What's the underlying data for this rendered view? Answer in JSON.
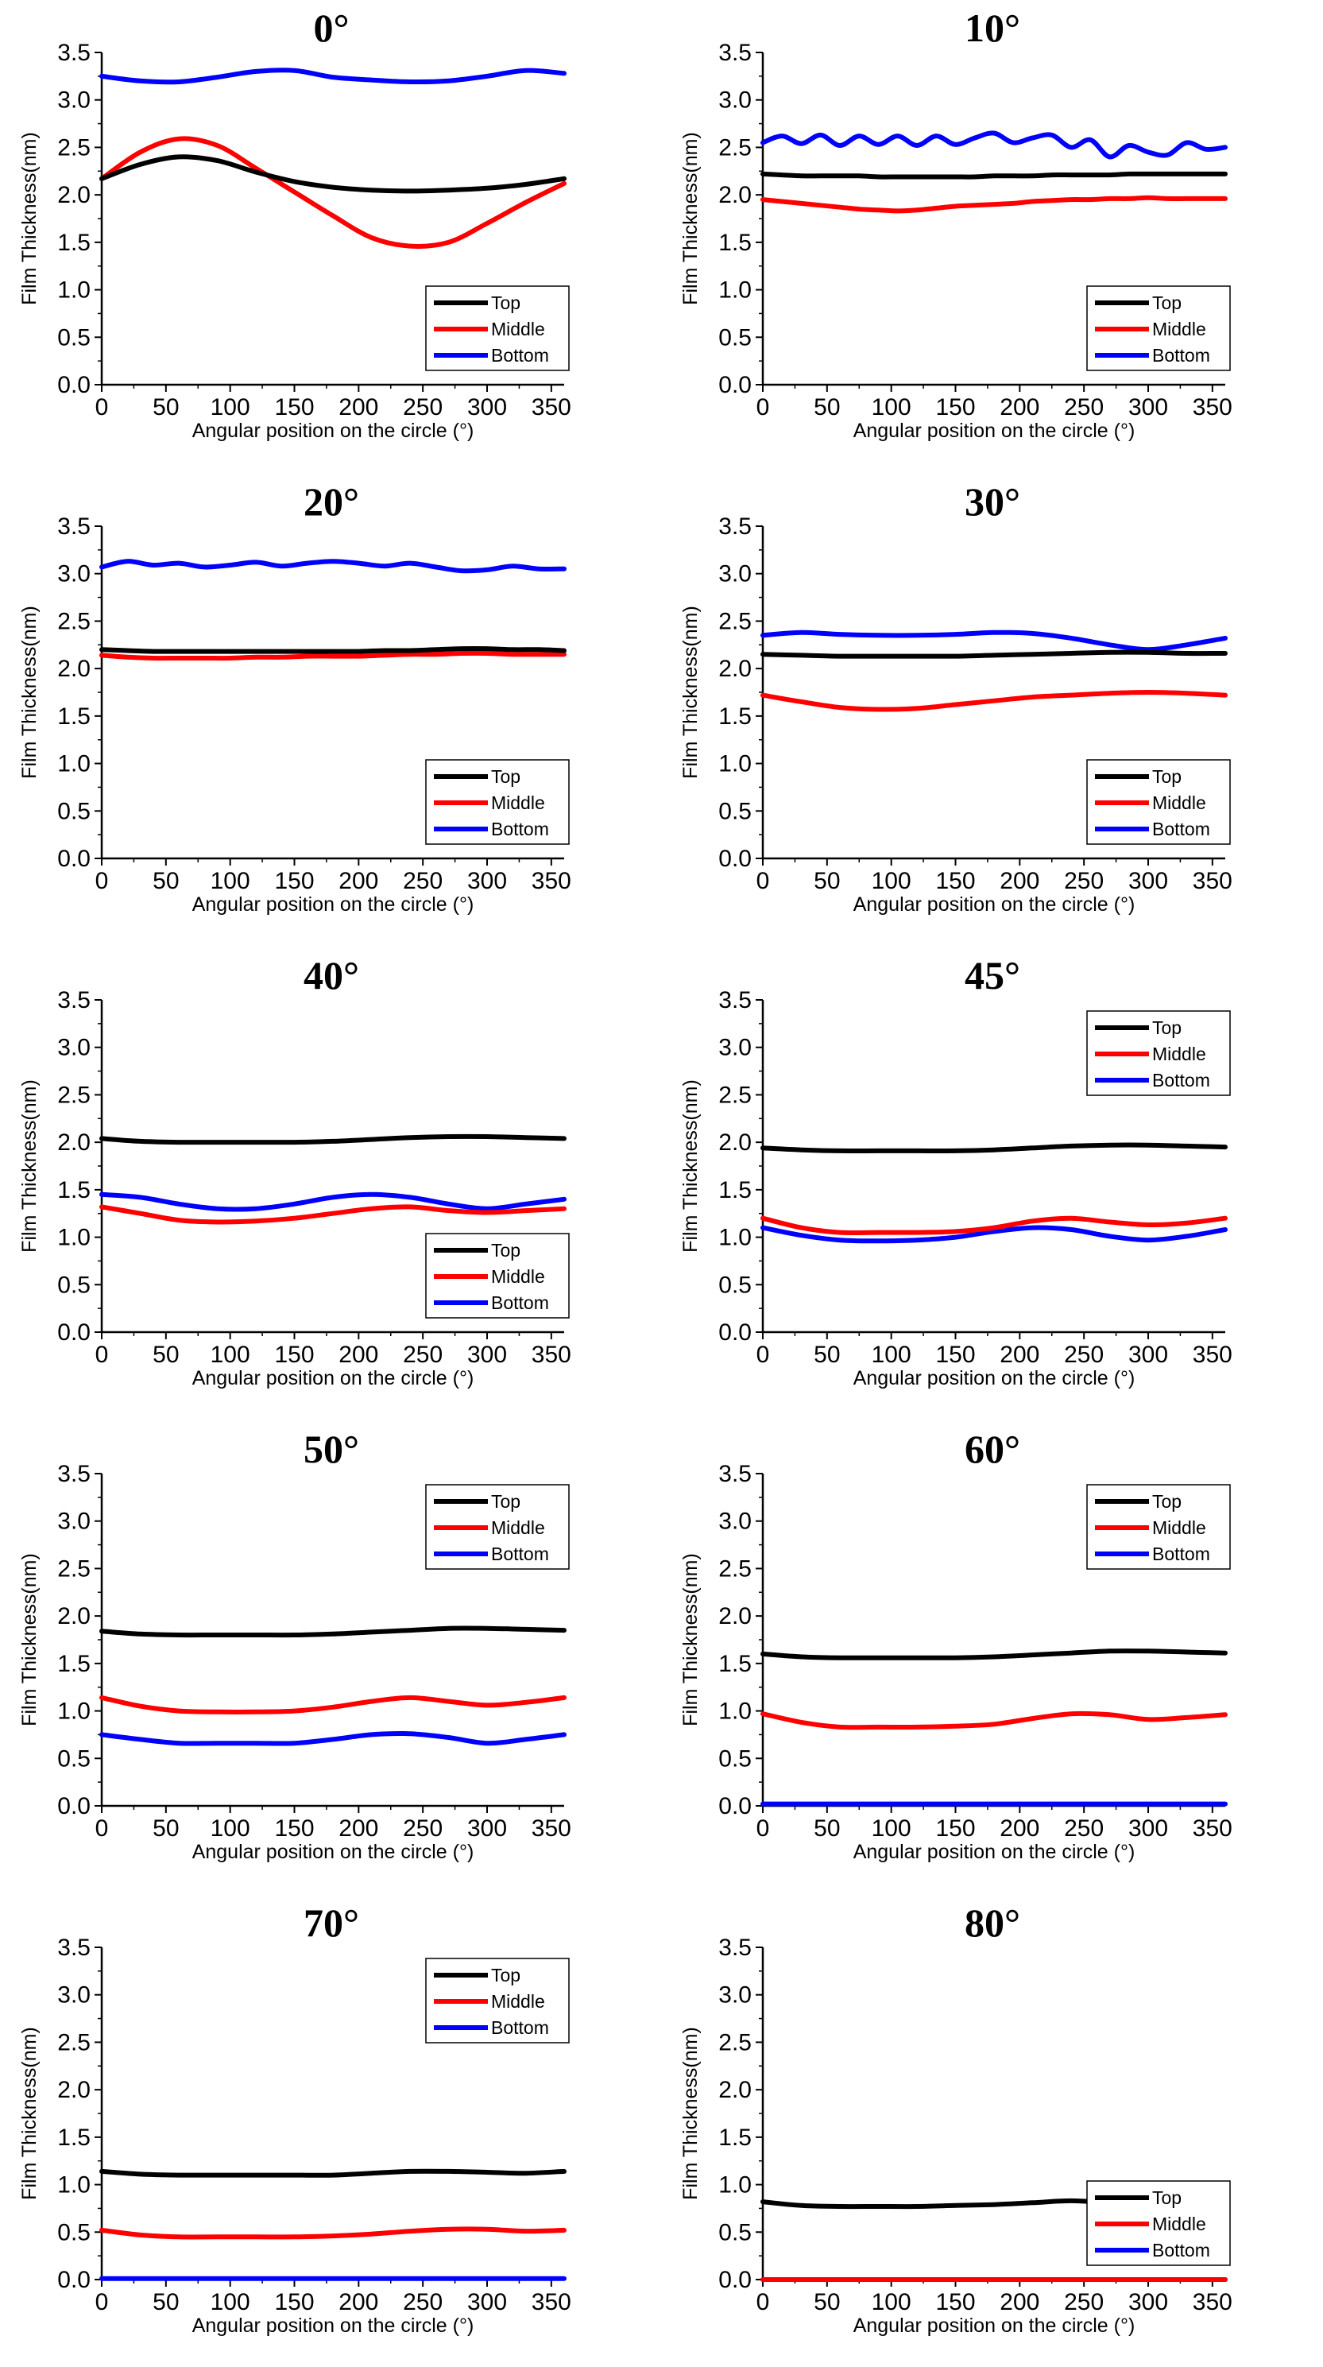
{
  "figure": {
    "series_names": [
      "Top",
      "Middle",
      "Bottom"
    ],
    "colors": {
      "Top": "#000000",
      "Middle": "#ff0000",
      "Bottom": "#0000ff"
    }
  },
  "chart_data": [
    {
      "type": "line",
      "title": "0°",
      "xlabel": "Angular position on the circle (°)",
      "ylabel": "Film Thickness(nm)",
      "xlim": [
        0,
        360
      ],
      "ylim": [
        0,
        3.5
      ],
      "xticks": [
        "0",
        "50",
        "100",
        "150",
        "200",
        "250",
        "300",
        "350"
      ],
      "yticks": [
        "0.0",
        "0.5",
        "1.0",
        "1.5",
        "2.0",
        "2.5",
        "3.0",
        "3.5"
      ],
      "legend": "bottom-right",
      "x": [
        0,
        30,
        60,
        90,
        120,
        150,
        180,
        210,
        240,
        270,
        300,
        330,
        360
      ],
      "series": [
        {
          "name": "Top",
          "values": [
            2.17,
            2.32,
            2.4,
            2.36,
            2.24,
            2.14,
            2.08,
            2.05,
            2.04,
            2.05,
            2.07,
            2.11,
            2.17
          ]
        },
        {
          "name": "Middle",
          "values": [
            2.17,
            2.45,
            2.59,
            2.52,
            2.28,
            2.03,
            1.78,
            1.55,
            1.46,
            1.5,
            1.7,
            1.92,
            2.12
          ]
        },
        {
          "name": "Bottom",
          "values": [
            3.25,
            3.2,
            3.19,
            3.24,
            3.3,
            3.31,
            3.24,
            3.21,
            3.19,
            3.2,
            3.25,
            3.31,
            3.28
          ]
        }
      ]
    },
    {
      "type": "line",
      "title": "10°",
      "xlabel": "Angular position on the circle (°)",
      "ylabel": "Film Thickness(nm)",
      "xlim": [
        0,
        360
      ],
      "ylim": [
        0,
        3.5
      ],
      "xticks": [
        "0",
        "50",
        "100",
        "150",
        "200",
        "250",
        "300",
        "350"
      ],
      "yticks": [
        "0.0",
        "0.5",
        "1.0",
        "1.5",
        "2.0",
        "2.5",
        "3.0",
        "3.5"
      ],
      "legend": "bottom-right",
      "x": [
        0,
        15,
        30,
        45,
        60,
        75,
        90,
        105,
        120,
        135,
        150,
        165,
        180,
        195,
        210,
        225,
        240,
        255,
        270,
        285,
        300,
        315,
        330,
        345,
        360
      ],
      "series": [
        {
          "name": "Top",
          "values": [
            2.22,
            2.21,
            2.2,
            2.2,
            2.2,
            2.2,
            2.19,
            2.19,
            2.19,
            2.19,
            2.19,
            2.19,
            2.2,
            2.2,
            2.2,
            2.21,
            2.21,
            2.21,
            2.21,
            2.22,
            2.22,
            2.22,
            2.22,
            2.22,
            2.22
          ]
        },
        {
          "name": "Middle",
          "values": [
            1.95,
            1.93,
            1.91,
            1.89,
            1.87,
            1.85,
            1.84,
            1.83,
            1.84,
            1.86,
            1.88,
            1.89,
            1.9,
            1.91,
            1.93,
            1.94,
            1.95,
            1.95,
            1.96,
            1.96,
            1.97,
            1.96,
            1.96,
            1.96,
            1.96
          ]
        },
        {
          "name": "Bottom",
          "values": [
            2.55,
            2.62,
            2.54,
            2.63,
            2.52,
            2.62,
            2.53,
            2.62,
            2.52,
            2.62,
            2.53,
            2.6,
            2.65,
            2.55,
            2.6,
            2.63,
            2.5,
            2.58,
            2.4,
            2.52,
            2.45,
            2.42,
            2.55,
            2.48,
            2.5
          ]
        }
      ]
    },
    {
      "type": "line",
      "title": "20°",
      "xlabel": "Angular position on the circle (°)",
      "ylabel": "Film Thickness(nm)",
      "xlim": [
        0,
        360
      ],
      "ylim": [
        0,
        3.5
      ],
      "xticks": [
        "0",
        "50",
        "100",
        "150",
        "200",
        "250",
        "300",
        "350"
      ],
      "yticks": [
        "0.0",
        "0.5",
        "1.0",
        "1.5",
        "2.0",
        "2.5",
        "3.0",
        "3.5"
      ],
      "legend": "bottom-right",
      "x": [
        0,
        20,
        40,
        60,
        80,
        100,
        120,
        140,
        160,
        180,
        200,
        220,
        240,
        260,
        280,
        300,
        320,
        340,
        360
      ],
      "series": [
        {
          "name": "Top",
          "values": [
            2.2,
            2.19,
            2.18,
            2.18,
            2.18,
            2.18,
            2.18,
            2.18,
            2.18,
            2.18,
            2.18,
            2.19,
            2.19,
            2.2,
            2.21,
            2.21,
            2.2,
            2.2,
            2.19
          ]
        },
        {
          "name": "Middle",
          "values": [
            2.14,
            2.12,
            2.11,
            2.11,
            2.11,
            2.11,
            2.12,
            2.12,
            2.13,
            2.13,
            2.13,
            2.14,
            2.15,
            2.15,
            2.16,
            2.16,
            2.15,
            2.15,
            2.15
          ]
        },
        {
          "name": "Bottom",
          "values": [
            3.07,
            3.13,
            3.09,
            3.11,
            3.07,
            3.09,
            3.12,
            3.08,
            3.11,
            3.13,
            3.11,
            3.08,
            3.11,
            3.07,
            3.03,
            3.04,
            3.08,
            3.05,
            3.05
          ]
        }
      ]
    },
    {
      "type": "line",
      "title": "30°",
      "xlabel": "Angular position on the circle (°)",
      "ylabel": "Film Thickness(nm)",
      "xlim": [
        0,
        360
      ],
      "ylim": [
        0,
        3.5
      ],
      "xticks": [
        "0",
        "50",
        "100",
        "150",
        "200",
        "250",
        "300",
        "350"
      ],
      "yticks": [
        "0.0",
        "0.5",
        "1.0",
        "1.5",
        "2.0",
        "2.5",
        "3.0",
        "3.5"
      ],
      "legend": "bottom-right",
      "x": [
        0,
        30,
        60,
        90,
        120,
        150,
        180,
        210,
        240,
        270,
        300,
        330,
        360
      ],
      "series": [
        {
          "name": "Top",
          "values": [
            2.15,
            2.14,
            2.13,
            2.13,
            2.13,
            2.13,
            2.14,
            2.15,
            2.16,
            2.17,
            2.17,
            2.16,
            2.16
          ]
        },
        {
          "name": "Middle",
          "values": [
            1.72,
            1.65,
            1.59,
            1.57,
            1.58,
            1.62,
            1.66,
            1.7,
            1.72,
            1.74,
            1.75,
            1.74,
            1.72
          ]
        },
        {
          "name": "Bottom",
          "values": [
            2.35,
            2.38,
            2.36,
            2.35,
            2.35,
            2.36,
            2.38,
            2.37,
            2.32,
            2.25,
            2.2,
            2.25,
            2.32
          ]
        }
      ]
    },
    {
      "type": "line",
      "title": "40°",
      "xlabel": "Angular position on the circle (°)",
      "ylabel": "Film Thickness(nm)",
      "xlim": [
        0,
        360
      ],
      "ylim": [
        0,
        3.5
      ],
      "xticks": [
        "0",
        "50",
        "100",
        "150",
        "200",
        "250",
        "300",
        "350"
      ],
      "yticks": [
        "0.0",
        "0.5",
        "1.0",
        "1.5",
        "2.0",
        "2.5",
        "3.0",
        "3.5"
      ],
      "legend": "bottom-right",
      "x": [
        0,
        30,
        60,
        90,
        120,
        150,
        180,
        210,
        240,
        270,
        300,
        330,
        360
      ],
      "series": [
        {
          "name": "Top",
          "values": [
            2.04,
            2.01,
            2.0,
            2.0,
            2.0,
            2.0,
            2.01,
            2.03,
            2.05,
            2.06,
            2.06,
            2.05,
            2.04
          ]
        },
        {
          "name": "Middle",
          "values": [
            1.32,
            1.25,
            1.18,
            1.16,
            1.17,
            1.2,
            1.25,
            1.3,
            1.32,
            1.28,
            1.26,
            1.28,
            1.3
          ]
        },
        {
          "name": "Bottom",
          "values": [
            1.45,
            1.42,
            1.35,
            1.3,
            1.3,
            1.35,
            1.42,
            1.45,
            1.42,
            1.35,
            1.3,
            1.35,
            1.4
          ]
        }
      ]
    },
    {
      "type": "line",
      "title": "45°",
      "xlabel": "Angular position on the circle (°)",
      "ylabel": "Film Thickness(nm)",
      "xlim": [
        0,
        360
      ],
      "ylim": [
        0,
        3.5
      ],
      "xticks": [
        "0",
        "50",
        "100",
        "150",
        "200",
        "250",
        "300",
        "350"
      ],
      "yticks": [
        "0.0",
        "0.5",
        "1.0",
        "1.5",
        "2.0",
        "2.5",
        "3.0",
        "3.5"
      ],
      "legend": "top-right",
      "x": [
        0,
        30,
        60,
        90,
        120,
        150,
        180,
        210,
        240,
        270,
        300,
        330,
        360
      ],
      "series": [
        {
          "name": "Top",
          "values": [
            1.94,
            1.92,
            1.91,
            1.91,
            1.91,
            1.91,
            1.92,
            1.94,
            1.96,
            1.97,
            1.97,
            1.96,
            1.95
          ]
        },
        {
          "name": "Middle",
          "values": [
            1.2,
            1.1,
            1.05,
            1.05,
            1.05,
            1.06,
            1.1,
            1.17,
            1.2,
            1.16,
            1.13,
            1.15,
            1.2
          ]
        },
        {
          "name": "Bottom",
          "values": [
            1.1,
            1.02,
            0.97,
            0.96,
            0.97,
            1.0,
            1.06,
            1.1,
            1.08,
            1.01,
            0.97,
            1.01,
            1.08
          ]
        }
      ]
    },
    {
      "type": "line",
      "title": "50°",
      "xlabel": "Angular position on the circle (°)",
      "ylabel": "Film Thickness(nm)",
      "xlim": [
        0,
        360
      ],
      "ylim": [
        0,
        3.5
      ],
      "xticks": [
        "0",
        "50",
        "100",
        "150",
        "200",
        "250",
        "300",
        "350"
      ],
      "yticks": [
        "0.0",
        "0.5",
        "1.0",
        "1.5",
        "2.0",
        "2.5",
        "3.0",
        "3.5"
      ],
      "legend": "top-right",
      "x": [
        0,
        30,
        60,
        90,
        120,
        150,
        180,
        210,
        240,
        270,
        300,
        330,
        360
      ],
      "series": [
        {
          "name": "Top",
          "values": [
            1.84,
            1.81,
            1.8,
            1.8,
            1.8,
            1.8,
            1.81,
            1.83,
            1.85,
            1.87,
            1.87,
            1.86,
            1.85
          ]
        },
        {
          "name": "Middle",
          "values": [
            1.14,
            1.05,
            1.0,
            0.99,
            0.99,
            1.0,
            1.04,
            1.1,
            1.14,
            1.1,
            1.06,
            1.09,
            1.14
          ]
        },
        {
          "name": "Bottom",
          "values": [
            0.75,
            0.7,
            0.66,
            0.66,
            0.66,
            0.66,
            0.7,
            0.75,
            0.76,
            0.72,
            0.66,
            0.7,
            0.75
          ]
        }
      ]
    },
    {
      "type": "line",
      "title": "60°",
      "xlabel": "Angular position on the circle (°)",
      "ylabel": "Film Thickness(nm)",
      "xlim": [
        0,
        360
      ],
      "ylim": [
        0,
        3.5
      ],
      "xticks": [
        "0",
        "50",
        "100",
        "150",
        "200",
        "250",
        "300",
        "350"
      ],
      "yticks": [
        "0.0",
        "0.5",
        "1.0",
        "1.5",
        "2.0",
        "2.5",
        "3.0",
        "3.5"
      ],
      "legend": "top-right",
      "x": [
        0,
        30,
        60,
        90,
        120,
        150,
        180,
        210,
        240,
        270,
        300,
        330,
        360
      ],
      "series": [
        {
          "name": "Top",
          "values": [
            1.6,
            1.57,
            1.56,
            1.56,
            1.56,
            1.56,
            1.57,
            1.59,
            1.61,
            1.63,
            1.63,
            1.62,
            1.61
          ]
        },
        {
          "name": "Middle",
          "values": [
            0.97,
            0.88,
            0.83,
            0.83,
            0.83,
            0.84,
            0.86,
            0.92,
            0.97,
            0.96,
            0.91,
            0.93,
            0.96
          ]
        },
        {
          "name": "Bottom",
          "values": [
            0.02,
            0.02,
            0.02,
            0.02,
            0.02,
            0.02,
            0.02,
            0.02,
            0.02,
            0.02,
            0.02,
            0.02,
            0.02
          ]
        }
      ]
    },
    {
      "type": "line",
      "title": "70°",
      "xlabel": "Angular position on the circle (°)",
      "ylabel": "Film Thickness(nm)",
      "xlim": [
        0,
        360
      ],
      "ylim": [
        0,
        3.5
      ],
      "xticks": [
        "0",
        "50",
        "100",
        "150",
        "200",
        "250",
        "300",
        "350"
      ],
      "yticks": [
        "0.0",
        "0.5",
        "1.0",
        "1.5",
        "2.0",
        "2.5",
        "3.0",
        "3.5"
      ],
      "legend": "top-right",
      "x": [
        0,
        30,
        60,
        90,
        120,
        150,
        180,
        210,
        240,
        270,
        300,
        330,
        360
      ],
      "series": [
        {
          "name": "Top",
          "values": [
            1.14,
            1.11,
            1.1,
            1.1,
            1.1,
            1.1,
            1.1,
            1.12,
            1.14,
            1.14,
            1.13,
            1.12,
            1.14
          ]
        },
        {
          "name": "Middle",
          "values": [
            0.52,
            0.47,
            0.45,
            0.45,
            0.45,
            0.45,
            0.46,
            0.48,
            0.51,
            0.53,
            0.53,
            0.51,
            0.52
          ]
        },
        {
          "name": "Bottom",
          "values": [
            0.01,
            0.01,
            0.01,
            0.01,
            0.01,
            0.01,
            0.01,
            0.01,
            0.01,
            0.01,
            0.01,
            0.01,
            0.01
          ]
        }
      ]
    },
    {
      "type": "line",
      "title": "80°",
      "xlabel": "Angular position on the circle (°)",
      "ylabel": "Film Thickness(nm)",
      "xlim": [
        0,
        360
      ],
      "ylim": [
        0,
        3.5
      ],
      "xticks": [
        "0",
        "50",
        "100",
        "150",
        "200",
        "250",
        "300",
        "350"
      ],
      "yticks": [
        "0.0",
        "0.5",
        "1.0",
        "1.5",
        "2.0",
        "2.5",
        "3.0",
        "3.5"
      ],
      "legend": "bottom-right",
      "x": [
        0,
        30,
        60,
        90,
        120,
        150,
        180,
        210,
        240,
        270,
        300,
        330,
        360
      ],
      "series": [
        {
          "name": "Top",
          "values": [
            0.82,
            0.78,
            0.77,
            0.77,
            0.77,
            0.78,
            0.79,
            0.81,
            0.83,
            0.81,
            0.8,
            0.79,
            0.8
          ]
        },
        {
          "name": "Middle",
          "values": [
            0.0,
            0.0,
            0.0,
            0.0,
            0.0,
            0.0,
            0.0,
            0.0,
            0.0,
            0.0,
            0.0,
            0.0,
            0.0
          ]
        },
        {
          "name": "Bottom",
          "values": [
            0.0,
            0.0,
            0.0,
            0.0,
            0.0,
            0.0,
            0.0,
            0.0,
            0.0,
            0.0,
            0.0,
            0.0,
            0.0
          ]
        }
      ]
    }
  ]
}
